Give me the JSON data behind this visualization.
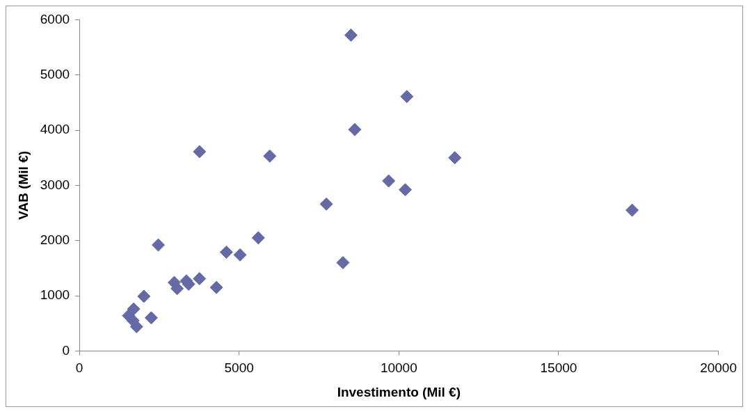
{
  "chart_data": {
    "type": "scatter",
    "xlabel": "Investimento (Mil €)",
    "ylabel": "VAB (Mil €)",
    "x": [
      8500,
      10250,
      8620,
      3760,
      5960,
      11750,
      9680,
      10200,
      7730,
      17300,
      5600,
      2470,
      4600,
      5030,
      8250,
      2970,
      3760,
      3350,
      3420,
      3060,
      4290,
      2020,
      2250,
      1540,
      1700,
      1680,
      1790
    ],
    "values": [
      5720,
      4610,
      4010,
      3610,
      3530,
      3500,
      3080,
      2920,
      2660,
      2550,
      2050,
      1920,
      1790,
      1740,
      1600,
      1240,
      1310,
      1270,
      1210,
      1130,
      1150,
      990,
      600,
      640,
      760,
      550,
      440
    ],
    "color": "#656aa6",
    "marker": "diamond",
    "xlim": [
      0,
      20000
    ],
    "xticks": [
      0,
      5000,
      10000,
      15000,
      20000
    ],
    "ylim": [
      0,
      6000
    ],
    "yticks": [
      0,
      1000,
      2000,
      3000,
      4000,
      5000,
      6000
    ],
    "grid": false,
    "legend": false
  }
}
